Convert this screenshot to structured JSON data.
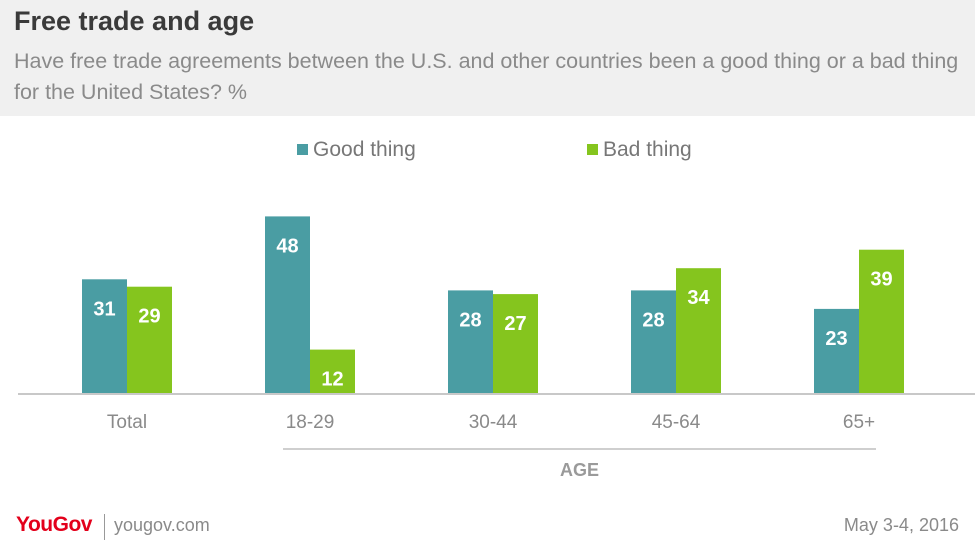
{
  "header": {
    "title": "Free trade and age",
    "subtitle": "Have free trade agreements between the U.S. and other countries been a good thing or a bad thing for the United States? %"
  },
  "chart_data": {
    "type": "bar",
    "categories": [
      "Total",
      "18-29",
      "30-44",
      "45-64",
      "65+"
    ],
    "series": [
      {
        "name": "Good thing",
        "values": [
          31,
          48,
          28,
          28,
          23
        ],
        "color": "#4a9da3"
      },
      {
        "name": "Bad thing",
        "values": [
          29,
          12,
          27,
          34,
          39
        ],
        "color": "#85c51e"
      }
    ],
    "group_label": "AGE",
    "legend_position": "top",
    "ylim": [
      0,
      50
    ],
    "grid": false
  },
  "footer": {
    "brand": "YouGov",
    "site": "yougov.com",
    "date": "May 3-4, 2016"
  }
}
